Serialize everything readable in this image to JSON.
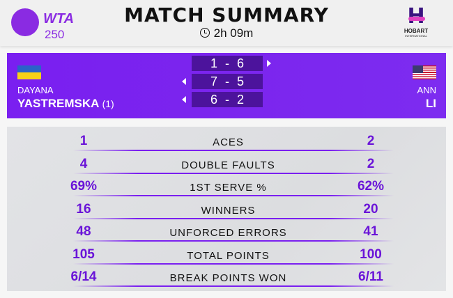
{
  "header": {
    "tour_logo": "WTA",
    "tour_level": "250",
    "title": "MATCH SUMMARY",
    "duration": "2h 09m",
    "duration_icon": "clock-icon",
    "tournament_logo": "HOBART",
    "tournament_logo_sub": "INTERNATIONAL"
  },
  "players": {
    "left": {
      "first": "DAYANA",
      "last": "YASTREMSKA",
      "seed": "(1)",
      "flag": "Ukraine"
    },
    "right": {
      "first": "ANN",
      "last": "LI",
      "flag": "USA"
    }
  },
  "sets": [
    {
      "score": "1 - 6",
      "winner": "right"
    },
    {
      "score": "7 - 5",
      "winner": "left"
    },
    {
      "score": "6 - 2",
      "winner": "left"
    }
  ],
  "stats": [
    {
      "label": "ACES",
      "left": "1",
      "right": "2"
    },
    {
      "label": "DOUBLE FAULTS",
      "left": "4",
      "right": "2"
    },
    {
      "label": "1ST SERVE %",
      "left": "69%",
      "right": "62%"
    },
    {
      "label": "WINNERS",
      "left": "16",
      "right": "20"
    },
    {
      "label": "UNFORCED ERRORS",
      "left": "48",
      "right": "41"
    },
    {
      "label": "TOTAL POINTS",
      "left": "105",
      "right": "100"
    },
    {
      "label": "BREAK POINTS WON",
      "left": "6/14",
      "right": "6/11"
    }
  ],
  "colors": {
    "accent": "#7a1ff0",
    "score_box": "#4c139c",
    "stat_value": "#6a14d8"
  }
}
